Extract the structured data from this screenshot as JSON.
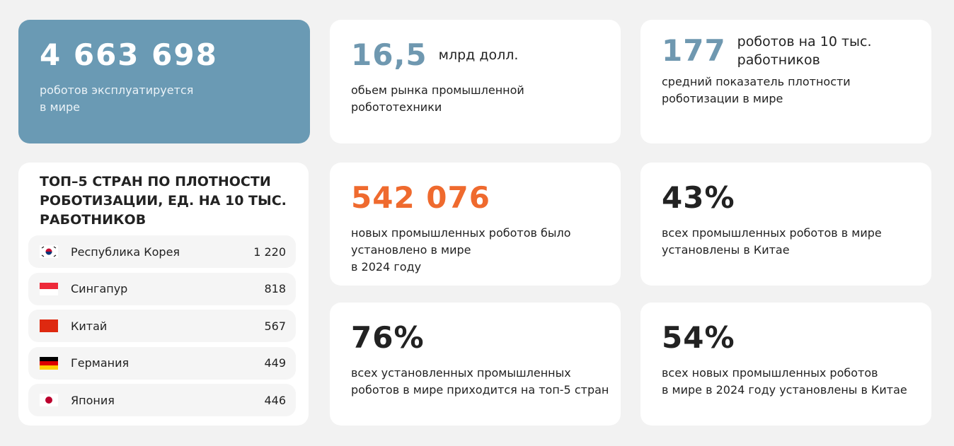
{
  "cards": [
    {
      "number": "4 663 698",
      "text": [
        "роботов эксплуатируется",
        "в мире"
      ]
    },
    {
      "number": "16,5",
      "unit": [
        "млрд долл."
      ],
      "text": [
        "обьем рынка промышленной",
        "робототехники"
      ]
    },
    {
      "number": "177",
      "unit": [
        "роботов на 10 тыс.",
        "работников"
      ],
      "text": [
        "средний показатель плотности",
        "роботизации в мире"
      ]
    },
    {
      "number": "542 076",
      "text": [
        "новых промышленных роботов было",
        "установлено в мире",
        "в 2024 году"
      ]
    },
    {
      "number": "43%",
      "text": [
        "всех промышленных роботов в мире",
        "установлены в Китае"
      ]
    },
    {
      "number": "76%",
      "text": [
        "всех установленных промышленных",
        "роботов в мире приходится на топ-5 стран"
      ]
    },
    {
      "number": "54%",
      "text": [
        "всех новых промышленных роботов",
        "в мире в 2024 году установлены в Китае"
      ]
    }
  ],
  "top5": {
    "title": [
      "ТОП–5 СТРАН ПО ПЛОТНОСТИ",
      "РОБОТИЗАЦИИ, ЕД. НА 10 ТЫС.",
      "РАБОТНИКОВ"
    ],
    "rows": [
      [
        "Республика Корея",
        "1 220"
      ],
      [
        "Сингапур",
        "818"
      ],
      [
        "Китай",
        "567"
      ],
      [
        "Германия",
        "449"
      ],
      [
        "Япония",
        "446"
      ]
    ]
  }
}
